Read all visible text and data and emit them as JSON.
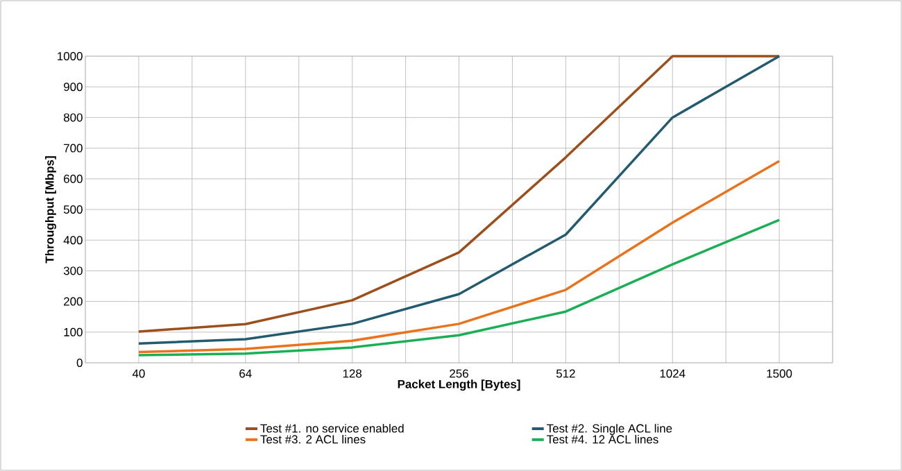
{
  "chart_data": {
    "type": "line",
    "xlabel": "Packet Length [Bytes]",
    "ylabel": "Throughput [Mbps]",
    "categories": [
      "40",
      "64",
      "128",
      "256",
      "512",
      "1024",
      "1500"
    ],
    "series": [
      {
        "name": "Test #1. no service enabled",
        "color": "#9c4f1a",
        "values": [
          102,
          126,
          204,
          360,
          670,
          1000,
          1000
        ]
      },
      {
        "name": "Test #2. Single ACL line",
        "color": "#235b6e",
        "values": [
          63,
          77,
          127,
          224,
          418,
          800,
          1000
        ]
      },
      {
        "name": "Test #3. 2 ACL lines",
        "color": "#e8731c",
        "values": [
          35,
          45,
          72,
          127,
          238,
          457,
          658
        ]
      },
      {
        "name": "Test #4. 12 ACL lines",
        "color": "#1aaf54",
        "values": [
          25,
          30,
          50,
          90,
          167,
          321,
          466
        ]
      }
    ],
    "ylim": [
      0,
      1000
    ],
    "yticks": [
      0,
      100,
      200,
      300,
      400,
      500,
      600,
      700,
      800,
      900,
      1000
    ],
    "grid": true,
    "legend": "bottom",
    "marker": "none",
    "line_style": "solid"
  }
}
